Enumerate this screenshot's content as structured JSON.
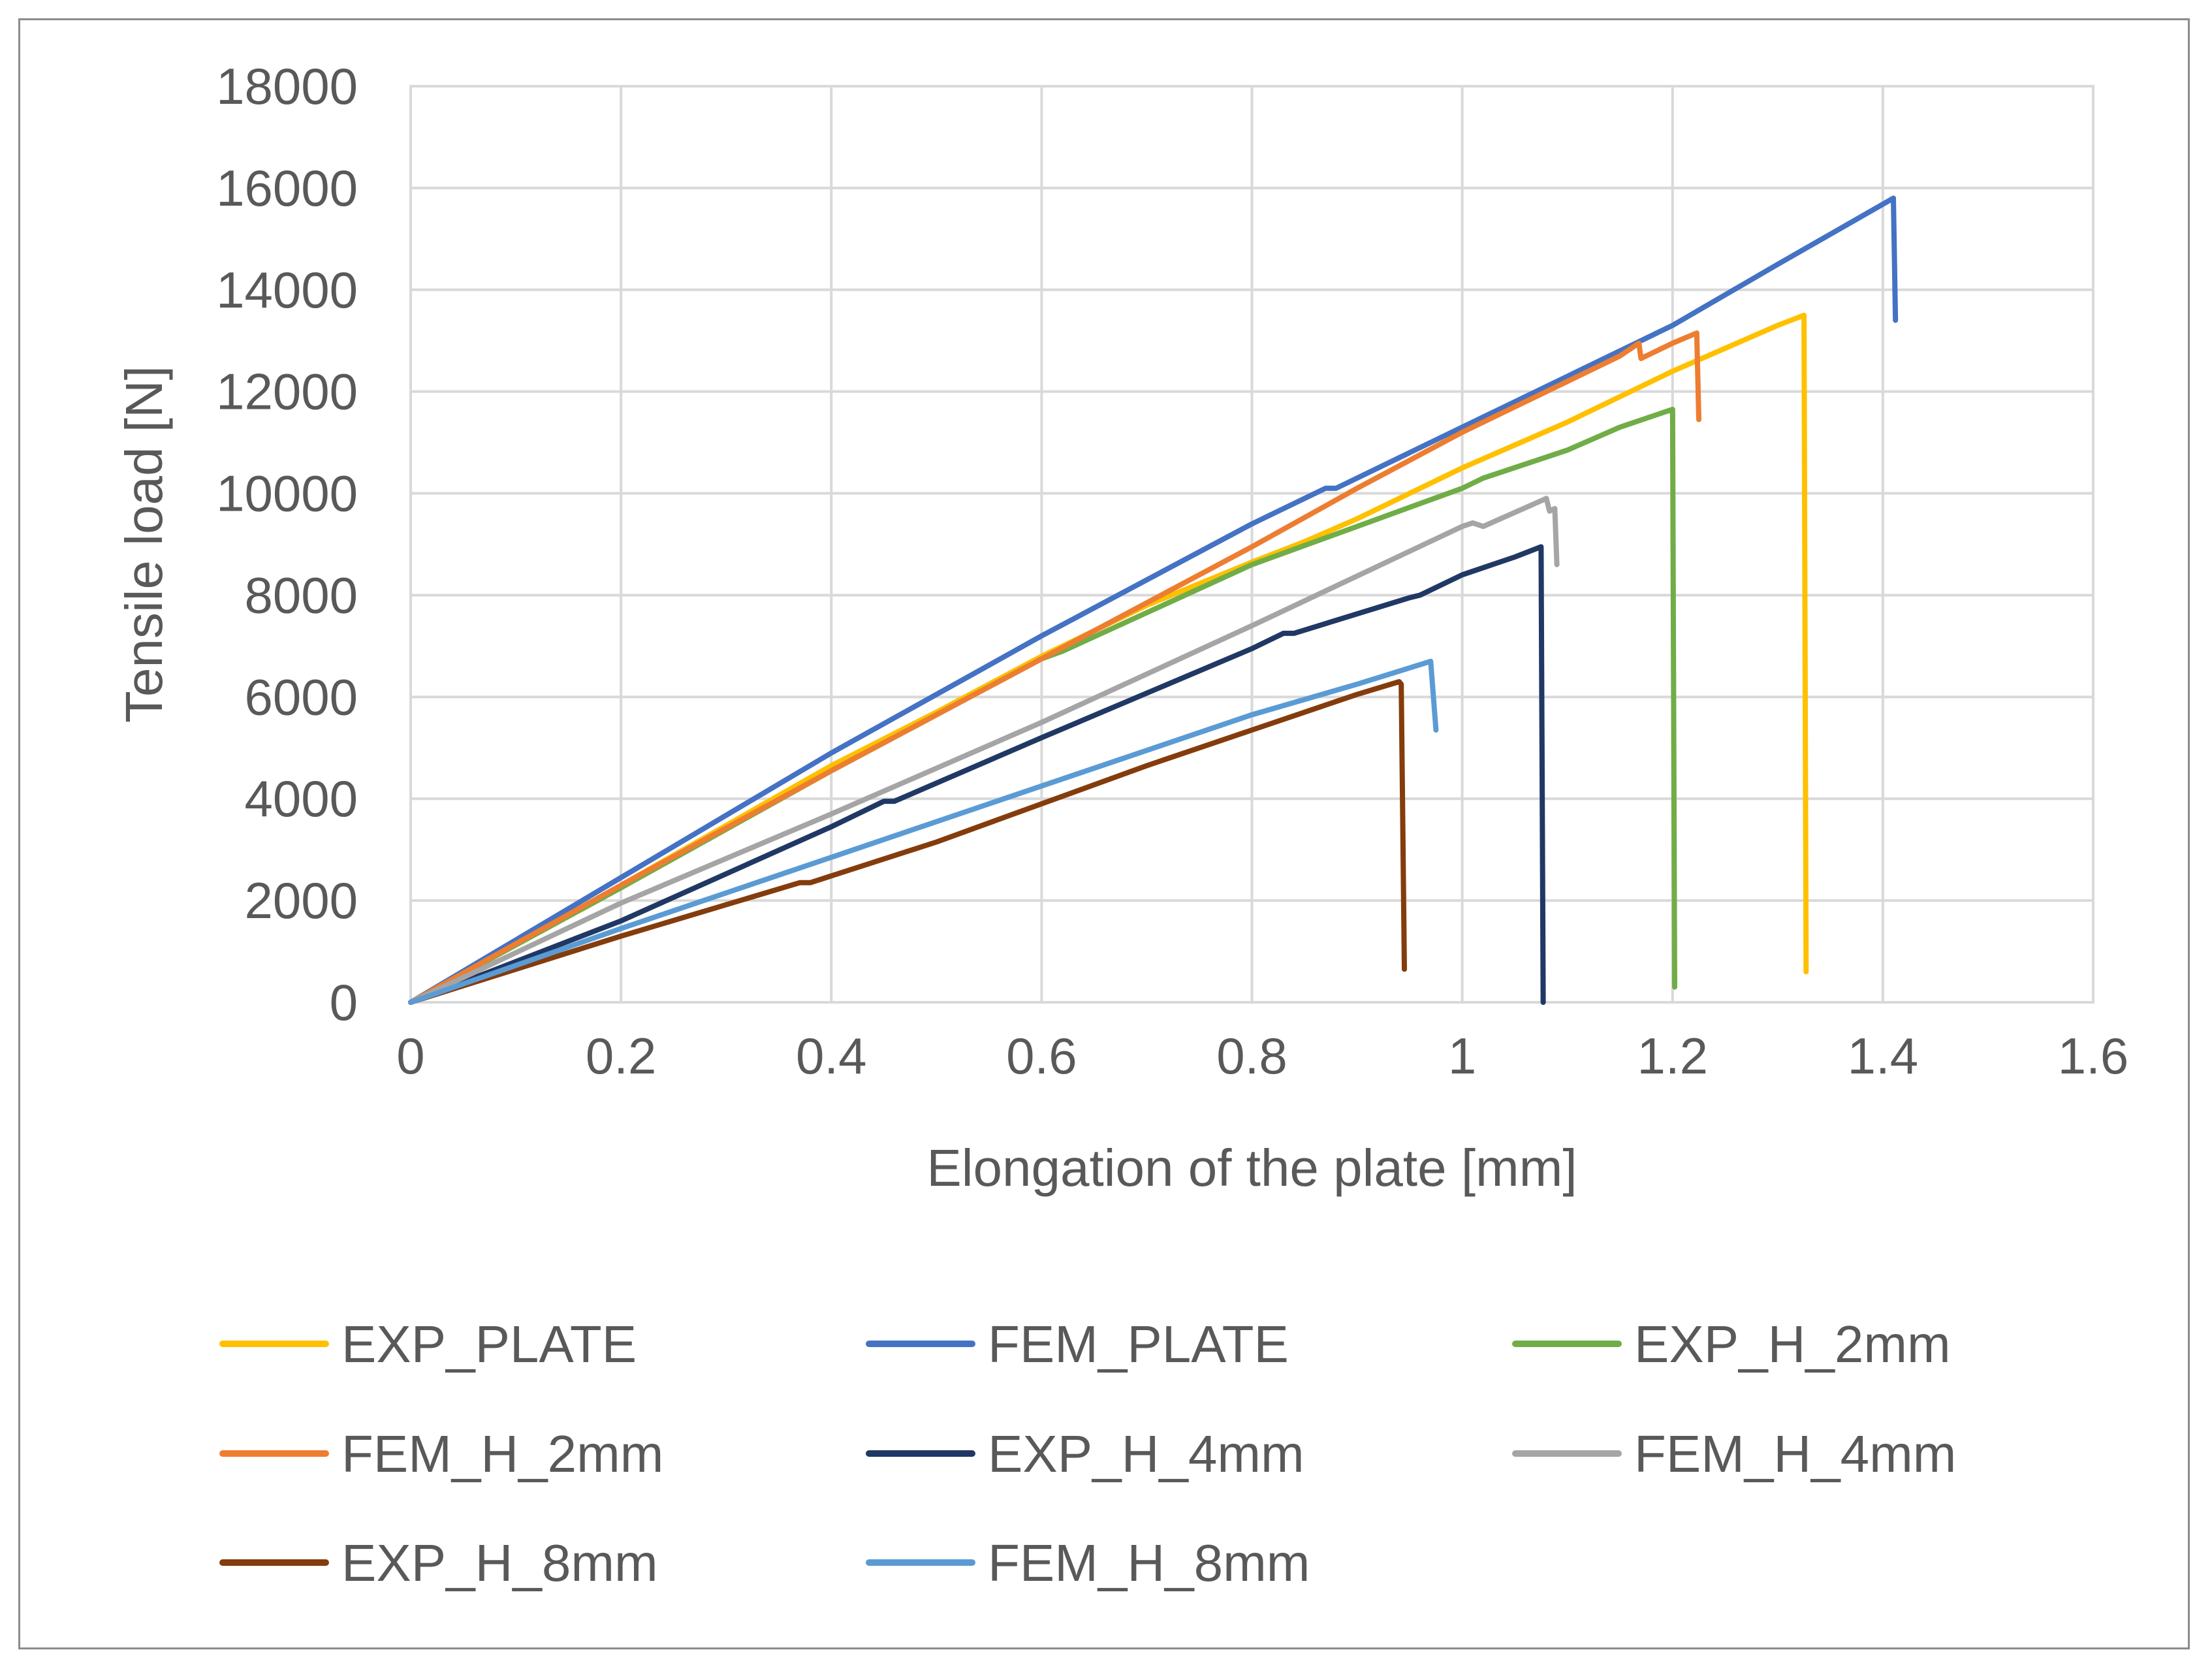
{
  "chart_data": {
    "type": "line",
    "title": "",
    "xlabel": "Elongation of the plate [mm]",
    "ylabel": "Tensile load [N]",
    "xlim": [
      0,
      1.6
    ],
    "ylim": [
      0,
      18000
    ],
    "x_ticks": [
      0,
      0.2,
      0.4,
      0.6,
      0.8,
      1,
      1.2,
      1.4,
      1.6
    ],
    "x_tick_labels": [
      "0",
      "0.2",
      "0.4",
      "0.6",
      "0.8",
      "1",
      "1.2",
      "1.4",
      "1.6"
    ],
    "y_ticks": [
      0,
      2000,
      4000,
      6000,
      8000,
      10000,
      12000,
      14000,
      16000,
      18000
    ],
    "y_tick_labels": [
      "0",
      "2000",
      "4000",
      "6000",
      "8000",
      "10000",
      "12000",
      "14000",
      "16000",
      "18000"
    ],
    "grid": true,
    "legend_position": "bottom",
    "series": [
      {
        "name": "EXP_PLATE",
        "color": "#FFC000",
        "x": [
          0,
          0.2,
          0.4,
          0.5,
          0.6,
          0.7,
          0.8,
          0.85,
          0.9,
          1.0,
          1.1,
          1.16,
          1.2,
          1.25,
          1.3,
          1.325,
          1.327
        ],
        "y": [
          0,
          2300,
          4650,
          5700,
          6800,
          7800,
          8650,
          9050,
          9500,
          10500,
          11400,
          12000,
          12400,
          12850,
          13300,
          13500,
          600
        ]
      },
      {
        "name": "FEM_PLATE",
        "color": "#4472C4",
        "x": [
          0,
          0.2,
          0.4,
          0.6,
          0.8,
          0.87,
          0.88,
          1.0,
          1.1,
          1.2,
          1.3,
          1.41,
          1.412
        ],
        "y": [
          0,
          2450,
          4900,
          7200,
          9400,
          10100,
          10100,
          11300,
          12300,
          13300,
          14500,
          15800,
          13400
        ]
      },
      {
        "name": "EXP_H_2mm",
        "color": "#70AD47",
        "x": [
          0,
          0.2,
          0.4,
          0.6,
          0.62,
          0.8,
          0.9,
          1.0,
          1.02,
          1.1,
          1.15,
          1.2,
          1.202
        ],
        "y": [
          0,
          2250,
          4550,
          6750,
          6900,
          8600,
          9350,
          10100,
          10300,
          10850,
          11300,
          11650,
          300
        ]
      },
      {
        "name": "FEM_H_2mm",
        "color": "#ED7D31",
        "x": [
          0,
          0.2,
          0.4,
          0.6,
          0.8,
          0.9,
          1.0,
          1.1,
          1.15,
          1.168,
          1.17,
          1.18,
          1.2,
          1.223,
          1.225
        ],
        "y": [
          0,
          2300,
          4550,
          6750,
          8950,
          10100,
          11200,
          12200,
          12700,
          12950,
          12650,
          12750,
          12950,
          13150,
          11450
        ]
      },
      {
        "name": "EXP_H_4mm",
        "color": "#203864",
        "x": [
          0,
          0.2,
          0.4,
          0.45,
          0.46,
          0.6,
          0.8,
          0.83,
          0.84,
          0.95,
          0.96,
          1.0,
          1.05,
          1.075,
          1.077
        ],
        "y": [
          0,
          1600,
          3450,
          3950,
          3950,
          5200,
          6950,
          7250,
          7250,
          7950,
          8000,
          8400,
          8750,
          8950,
          0
        ]
      },
      {
        "name": "FEM_H_4mm",
        "color": "#A5A5A5",
        "x": [
          0,
          0.2,
          0.4,
          0.5,
          0.6,
          0.8,
          1.0,
          1.01,
          1.02,
          1.08,
          1.083,
          1.088,
          1.09
        ],
        "y": [
          0,
          1950,
          3700,
          4600,
          5500,
          7400,
          9350,
          9420,
          9350,
          9900,
          9650,
          9700,
          8600
        ]
      },
      {
        "name": "EXP_H_8mm",
        "color": "#843C0C",
        "x": [
          0,
          0.2,
          0.37,
          0.38,
          0.5,
          0.6,
          0.7,
          0.8,
          0.9,
          0.94,
          0.942,
          0.945
        ],
        "y": [
          0,
          1300,
          2350,
          2350,
          3150,
          3900,
          4650,
          5350,
          6050,
          6300,
          6250,
          650
        ]
      },
      {
        "name": "FEM_H_8mm",
        "color": "#5B9BD5",
        "x": [
          0,
          0.2,
          0.4,
          0.6,
          0.8,
          0.9,
          0.97,
          0.975
        ],
        "y": [
          0,
          1450,
          2850,
          4250,
          5650,
          6250,
          6700,
          5350
        ]
      }
    ]
  }
}
